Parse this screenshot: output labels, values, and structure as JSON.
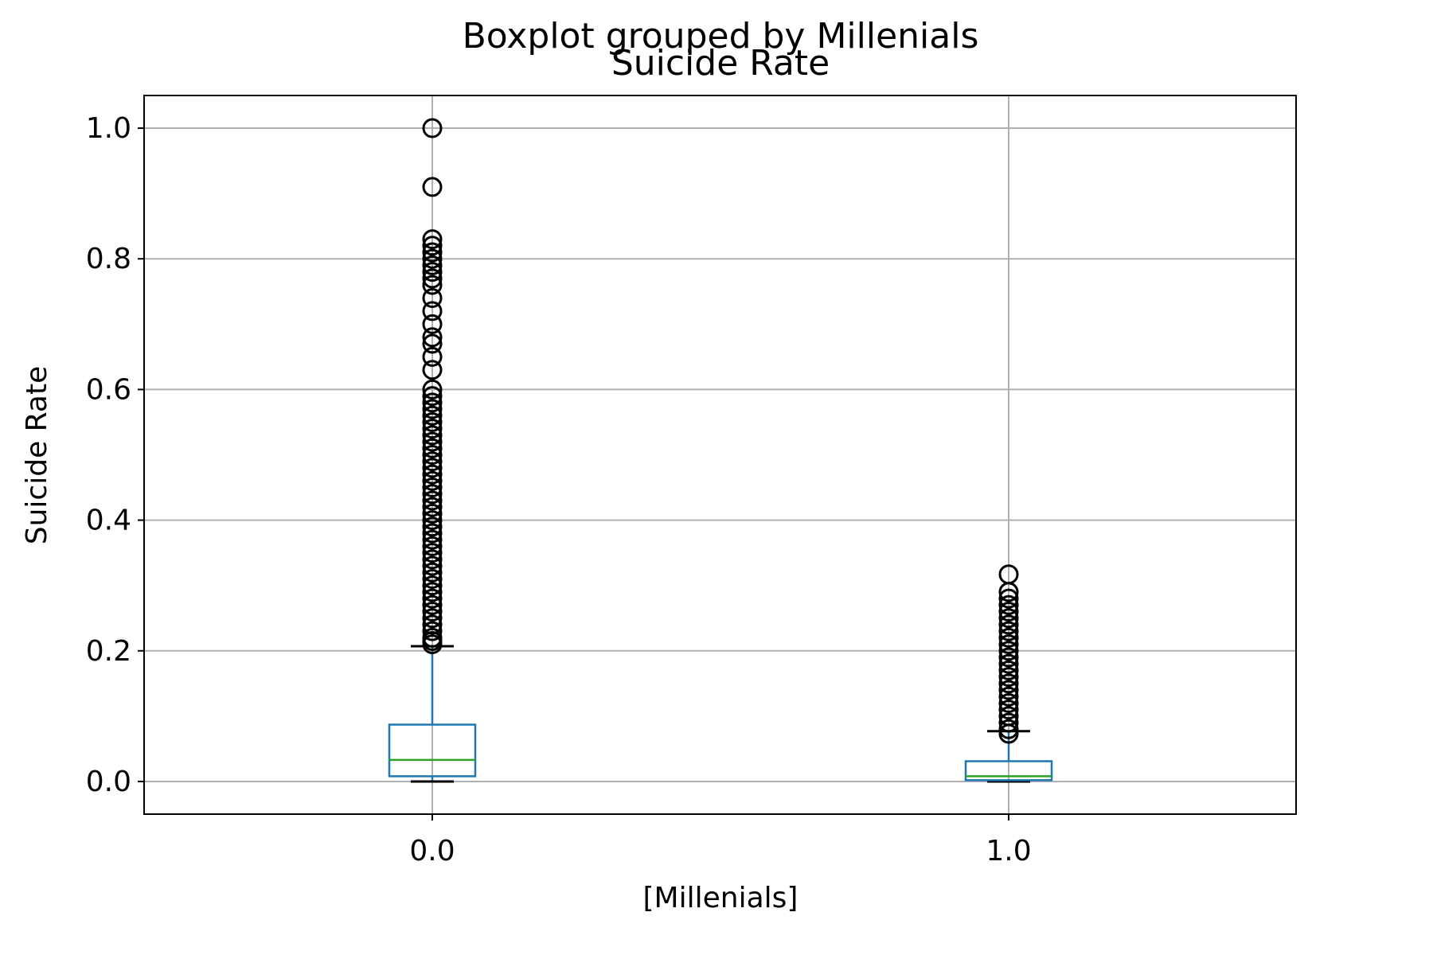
{
  "chart_data": {
    "type": "boxplot",
    "suptitle": "Boxplot grouped by Millenials",
    "title": "Suicide Rate",
    "xlabel": "[Millenials]",
    "ylabel": "Suicide Rate",
    "categories": [
      "0.0",
      "1.0"
    ],
    "ylim": [
      -0.05,
      1.05
    ],
    "yticks": [
      0.0,
      0.2,
      0.4,
      0.6,
      0.8,
      1.0
    ],
    "ytick_labels": [
      "0.0",
      "0.2",
      "0.4",
      "0.6",
      "0.8",
      "1.0"
    ],
    "grid": true,
    "colors": {
      "box": "#1f77b4",
      "median": "#2ca02c",
      "whisker": "#1f77b4",
      "cap": "#000000",
      "flier": "#000000",
      "grid": "#b0b0b0"
    },
    "boxes": [
      {
        "category": "0.0",
        "whisker_low": 0.0,
        "q1": 0.008,
        "median": 0.033,
        "q3": 0.087,
        "whisker_high": 0.207,
        "fliers": [
          0.21,
          0.215,
          0.22,
          0.23,
          0.24,
          0.25,
          0.26,
          0.27,
          0.28,
          0.29,
          0.3,
          0.31,
          0.32,
          0.33,
          0.34,
          0.35,
          0.36,
          0.37,
          0.38,
          0.39,
          0.4,
          0.41,
          0.42,
          0.43,
          0.44,
          0.45,
          0.46,
          0.47,
          0.48,
          0.49,
          0.5,
          0.51,
          0.52,
          0.53,
          0.54,
          0.55,
          0.56,
          0.57,
          0.58,
          0.59,
          0.6,
          0.63,
          0.65,
          0.67,
          0.68,
          0.7,
          0.72,
          0.74,
          0.76,
          0.77,
          0.78,
          0.79,
          0.8,
          0.81,
          0.82,
          0.83,
          0.91,
          1.0
        ]
      },
      {
        "category": "1.0",
        "whisker_low": 0.0,
        "q1": 0.002,
        "median": 0.008,
        "q3": 0.031,
        "whisker_high": 0.077,
        "fliers": [
          0.073,
          0.08,
          0.09,
          0.1,
          0.11,
          0.12,
          0.13,
          0.14,
          0.15,
          0.16,
          0.17,
          0.18,
          0.19,
          0.2,
          0.21,
          0.22,
          0.23,
          0.24,
          0.25,
          0.26,
          0.27,
          0.28,
          0.29,
          0.317
        ]
      }
    ]
  }
}
